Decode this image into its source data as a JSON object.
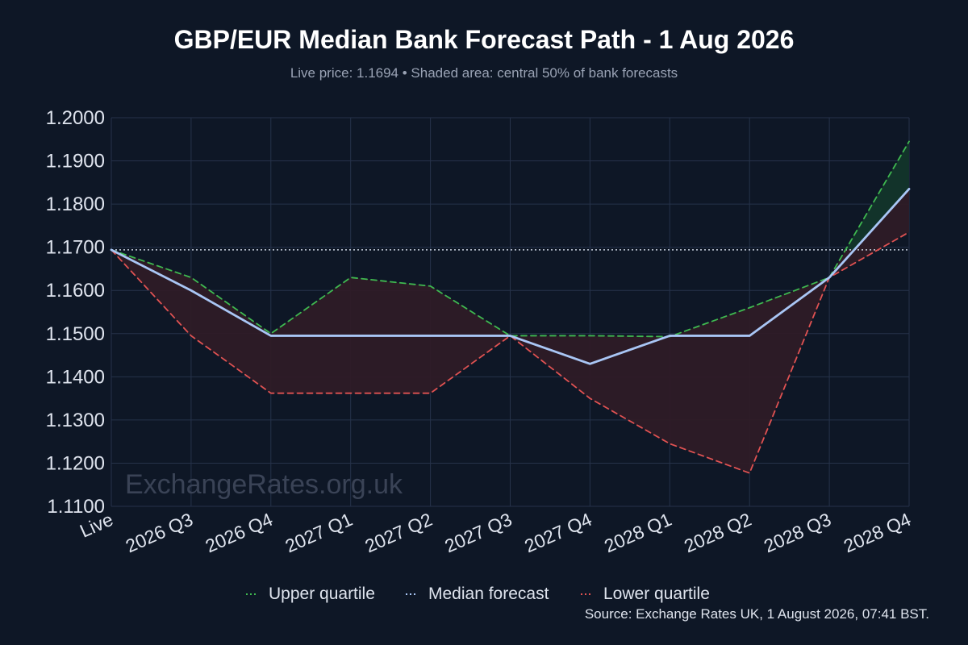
{
  "colors": {
    "background": "#0e1726",
    "grid": "#26324a",
    "axis_text": "#dfe4ee",
    "subtitle_text": "#9aa3b5",
    "upper": "#3fb950",
    "median": "#a9c6f5",
    "lower": "#e05252",
    "band_below_median": "#2e1b26",
    "band_above_median": "#12332a",
    "live_line": "#c9d1e0",
    "watermark": "#3a4356"
  },
  "chart_data": {
    "type": "line",
    "title": "GBP/EUR Median Bank Forecast Path - 1 Aug 2026",
    "subtitle": "Live price: 1.1694  •  Shaded area: central 50% of bank forecasts",
    "xlabel": "",
    "ylabel": "",
    "categories": [
      "Live",
      "2026 Q3",
      "2026 Q4",
      "2027 Q1",
      "2027 Q2",
      "2027 Q3",
      "2027 Q4",
      "2028 Q1",
      "2028 Q2",
      "2028 Q3",
      "2028 Q4"
    ],
    "series": [
      {
        "name": "Upper quartile",
        "color": "#3fb950",
        "style": "dashed",
        "values": [
          1.1694,
          1.163,
          1.15,
          1.163,
          1.161,
          1.1495,
          1.1495,
          1.1493,
          1.156,
          1.163,
          1.1945
        ]
      },
      {
        "name": "Median forecast",
        "color": "#a9c6f5",
        "style": "solid",
        "values": [
          1.1694,
          1.16,
          1.1495,
          1.1495,
          1.1495,
          1.1495,
          1.143,
          1.1495,
          1.1495,
          1.163,
          1.1835
        ]
      },
      {
        "name": "Lower quartile",
        "color": "#e05252",
        "style": "dashed",
        "values": [
          1.1694,
          1.1495,
          1.1362,
          1.1362,
          1.1362,
          1.1495,
          1.135,
          1.1245,
          1.1177,
          1.163,
          1.1735
        ]
      }
    ],
    "live_price": 1.1694,
    "ylim": [
      1.11,
      1.2
    ],
    "yticks": [
      "1.1100",
      "1.1200",
      "1.1300",
      "1.1400",
      "1.1500",
      "1.1600",
      "1.1700",
      "1.1800",
      "1.1900",
      "1.2000"
    ],
    "grid": true,
    "legend_position": "bottom-center",
    "watermark": "ExchangeRates.org.uk",
    "source": "Source: Exchange Rates UK, 1 August 2026, 07:41 BST."
  }
}
